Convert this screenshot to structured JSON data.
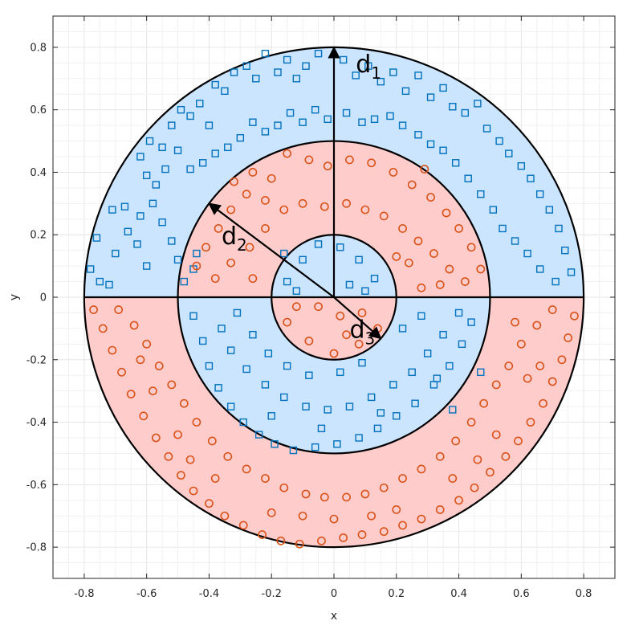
{
  "chart_data": {
    "type": "scatter",
    "title": "",
    "xlabel": "x",
    "ylabel": "y",
    "xlim": [
      -0.9,
      0.9
    ],
    "ylim": [
      -0.9,
      0.9
    ],
    "grid": true,
    "x_ticks": [
      "-0.8",
      "-0.6",
      "-0.4",
      "-0.2",
      "0",
      "0.2",
      "0.4",
      "0.6",
      "0.8"
    ],
    "y_ticks": [
      "0.8",
      "0.6",
      "0.4",
      "0.2",
      "0",
      "-0.2",
      "-0.4",
      "-0.6",
      "-0.8"
    ],
    "ring_radii": [
      0.2,
      0.5,
      0.8
    ],
    "colors": {
      "class_a_fill": "#cce5ff",
      "class_b_fill": "#ffcccc",
      "class_a_marker": "#0072bd",
      "class_b_marker": "#d95319",
      "boundary": "#000000",
      "grid": "#e6e6e6"
    },
    "markers": {
      "class_a": "square",
      "class_b": "circle"
    },
    "distances": [
      {
        "base": "d",
        "sub": "1",
        "from": [
          0,
          0
        ],
        "to": [
          0,
          0.8
        ],
        "label_at": [
          0.07,
          0.72
        ]
      },
      {
        "base": "d",
        "sub": "2",
        "from": [
          0,
          0
        ],
        "to": [
          -0.4,
          0.3
        ],
        "label_at": [
          -0.36,
          0.17
        ]
      },
      {
        "base": "d",
        "sub": "3",
        "from": [
          0,
          0
        ],
        "to": [
          0.15,
          -0.132
        ],
        "label_at": [
          0.05,
          -0.13
        ]
      }
    ],
    "series": [
      {
        "marker": "square",
        "points": [
          [
            -0.78,
            0.09
          ],
          [
            -0.75,
            0.05
          ],
          [
            -0.72,
            0.04
          ],
          [
            -0.76,
            0.19
          ],
          [
            -0.7,
            0.14
          ],
          [
            -0.66,
            0.21
          ],
          [
            -0.63,
            0.17
          ],
          [
            -0.6,
            0.1
          ],
          [
            -0.71,
            0.28
          ],
          [
            -0.67,
            0.29
          ],
          [
            -0.62,
            0.26
          ],
          [
            -0.58,
            0.3
          ],
          [
            -0.55,
            0.24
          ],
          [
            -0.52,
            0.18
          ],
          [
            -0.5,
            0.12
          ],
          [
            -0.48,
            0.05
          ],
          [
            -0.45,
            0.09
          ],
          [
            -0.44,
            0.14
          ],
          [
            -0.62,
            0.45
          ],
          [
            -0.59,
            0.5
          ],
          [
            -0.55,
            0.48
          ],
          [
            -0.52,
            0.55
          ],
          [
            -0.49,
            0.6
          ],
          [
            -0.46,
            0.58
          ],
          [
            -0.43,
            0.62
          ],
          [
            -0.4,
            0.55
          ],
          [
            -0.38,
            0.68
          ],
          [
            -0.35,
            0.66
          ],
          [
            -0.32,
            0.72
          ],
          [
            -0.28,
            0.74
          ],
          [
            -0.25,
            0.7
          ],
          [
            -0.22,
            0.78
          ],
          [
            -0.18,
            0.72
          ],
          [
            -0.15,
            0.76
          ],
          [
            -0.12,
            0.7
          ],
          [
            -0.09,
            0.74
          ],
          [
            -0.05,
            0.78
          ],
          [
            0.03,
            0.76
          ],
          [
            0.07,
            0.71
          ],
          [
            0.11,
            0.74
          ],
          [
            0.15,
            0.69
          ],
          [
            0.19,
            0.72
          ],
          [
            0.23,
            0.66
          ],
          [
            0.27,
            0.71
          ],
          [
            0.31,
            0.64
          ],
          [
            0.35,
            0.67
          ],
          [
            0.38,
            0.61
          ],
          [
            0.42,
            0.59
          ],
          [
            0.46,
            0.62
          ],
          [
            0.49,
            0.54
          ],
          [
            0.53,
            0.5
          ],
          [
            0.56,
            0.46
          ],
          [
            0.6,
            0.42
          ],
          [
            0.63,
            0.38
          ],
          [
            0.66,
            0.33
          ],
          [
            0.69,
            0.28
          ],
          [
            0.72,
            0.22
          ],
          [
            0.74,
            0.15
          ],
          [
            0.76,
            0.08
          ],
          [
            0.71,
            0.05
          ],
          [
            0.66,
            0.09
          ],
          [
            0.62,
            0.14
          ],
          [
            0.58,
            0.18
          ],
          [
            0.54,
            0.22
          ],
          [
            0.51,
            0.28
          ],
          [
            0.47,
            0.33
          ],
          [
            0.43,
            0.38
          ],
          [
            0.39,
            0.43
          ],
          [
            0.35,
            0.47
          ],
          [
            0.31,
            0.49
          ],
          [
            0.27,
            0.52
          ],
          [
            0.22,
            0.55
          ],
          [
            0.18,
            0.58
          ],
          [
            0.13,
            0.57
          ],
          [
            0.09,
            0.56
          ],
          [
            0.04,
            0.59
          ],
          [
            -0.02,
            0.57
          ],
          [
            -0.06,
            0.6
          ],
          [
            -0.1,
            0.56
          ],
          [
            -0.14,
            0.59
          ],
          [
            -0.18,
            0.55
          ],
          [
            -0.22,
            0.53
          ],
          [
            -0.26,
            0.56
          ],
          [
            -0.3,
            0.51
          ],
          [
            -0.34,
            0.48
          ],
          [
            -0.38,
            0.46
          ],
          [
            -0.42,
            0.43
          ],
          [
            -0.46,
            0.41
          ],
          [
            -0.5,
            0.47
          ],
          [
            -0.54,
            0.41
          ],
          [
            -0.57,
            0.36
          ],
          [
            -0.6,
            0.39
          ],
          [
            -0.15,
            0.05
          ],
          [
            -0.1,
            0.12
          ],
          [
            -0.05,
            0.17
          ],
          [
            0.02,
            0.16
          ],
          [
            0.08,
            0.12
          ],
          [
            0.13,
            0.06
          ],
          [
            0.1,
            0.02
          ],
          [
            -0.12,
            0.02
          ],
          [
            -0.16,
            0.14
          ],
          [
            0.05,
            0.04
          ],
          [
            -0.45,
            -0.06
          ],
          [
            -0.42,
            -0.14
          ],
          [
            -0.4,
            -0.22
          ],
          [
            -0.37,
            -0.29
          ],
          [
            -0.33,
            -0.35
          ],
          [
            -0.29,
            -0.4
          ],
          [
            -0.24,
            -0.44
          ],
          [
            -0.19,
            -0.47
          ],
          [
            -0.13,
            -0.49
          ],
          [
            -0.06,
            -0.48
          ],
          [
            0.01,
            -0.47
          ],
          [
            0.08,
            -0.45
          ],
          [
            0.14,
            -0.42
          ],
          [
            0.2,
            -0.38
          ],
          [
            0.26,
            -0.34
          ],
          [
            0.32,
            -0.28
          ],
          [
            0.37,
            -0.22
          ],
          [
            0.41,
            -0.15
          ],
          [
            0.44,
            -0.08
          ],
          [
            0.4,
            -0.05
          ],
          [
            0.35,
            -0.12
          ],
          [
            0.3,
            -0.18
          ],
          [
            0.25,
            -0.24
          ],
          [
            0.19,
            -0.28
          ],
          [
            0.12,
            -0.32
          ],
          [
            0.05,
            -0.35
          ],
          [
            -0.02,
            -0.36
          ],
          [
            -0.09,
            -0.35
          ],
          [
            -0.16,
            -0.32
          ],
          [
            -0.22,
            -0.28
          ],
          [
            -0.28,
            -0.23
          ],
          [
            -0.33,
            -0.17
          ],
          [
            -0.36,
            -0.1
          ],
          [
            -0.31,
            -0.05
          ],
          [
            -0.26,
            -0.12
          ],
          [
            -0.21,
            -0.18
          ],
          [
            -0.15,
            -0.22
          ],
          [
            -0.08,
            -0.25
          ],
          [
            0.02,
            -0.24
          ],
          [
            0.09,
            -0.21
          ],
          [
            0.22,
            -0.1
          ],
          [
            0.28,
            -0.06
          ],
          [
            0.33,
            -0.26
          ],
          [
            0.15,
            -0.37
          ],
          [
            -0.04,
            -0.42
          ],
          [
            -0.2,
            -0.38
          ],
          [
            0.47,
            -0.24
          ],
          [
            0.38,
            -0.36
          ]
        ]
      },
      {
        "marker": "circle",
        "points": [
          [
            -0.15,
            0.46
          ],
          [
            -0.08,
            0.44
          ],
          [
            -0.02,
            0.42
          ],
          [
            0.05,
            0.44
          ],
          [
            0.12,
            0.43
          ],
          [
            0.19,
            0.4
          ],
          [
            0.25,
            0.36
          ],
          [
            0.31,
            0.32
          ],
          [
            0.36,
            0.27
          ],
          [
            0.4,
            0.22
          ],
          [
            0.44,
            0.16
          ],
          [
            0.47,
            0.09
          ],
          [
            0.42,
            0.05
          ],
          [
            0.37,
            0.09
          ],
          [
            0.32,
            0.14
          ],
          [
            0.27,
            0.18
          ],
          [
            0.22,
            0.22
          ],
          [
            0.16,
            0.26
          ],
          [
            0.1,
            0.28
          ],
          [
            0.04,
            0.3
          ],
          [
            -0.03,
            0.29
          ],
          [
            -0.1,
            0.3
          ],
          [
            -0.16,
            0.28
          ],
          [
            -0.22,
            0.31
          ],
          [
            -0.28,
            0.33
          ],
          [
            -0.33,
            0.28
          ],
          [
            -0.37,
            0.22
          ],
          [
            -0.41,
            0.16
          ],
          [
            -0.44,
            0.1
          ],
          [
            -0.38,
            0.06
          ],
          [
            -0.33,
            0.11
          ],
          [
            -0.27,
            0.16
          ],
          [
            -0.22,
            0.22
          ],
          [
            -0.2,
            0.38
          ],
          [
            -0.26,
            0.4
          ],
          [
            -0.32,
            0.37
          ],
          [
            0.29,
            0.41
          ],
          [
            0.24,
            0.11
          ],
          [
            0.2,
            0.13
          ],
          [
            0.28,
            0.03
          ],
          [
            0.34,
            0.04
          ],
          [
            -0.26,
            0.06
          ],
          [
            -0.05,
            -0.03
          ],
          [
            0.02,
            -0.06
          ],
          [
            0.09,
            -0.05
          ],
          [
            0.14,
            -0.1
          ],
          [
            0.08,
            -0.15
          ],
          [
            0.0,
            -0.18
          ],
          [
            -0.08,
            -0.14
          ],
          [
            -0.15,
            -0.08
          ],
          [
            -0.12,
            -0.03
          ],
          [
            0.04,
            -0.12
          ],
          [
            -0.77,
            -0.04
          ],
          [
            -0.74,
            -0.1
          ],
          [
            -0.71,
            -0.17
          ],
          [
            -0.68,
            -0.24
          ],
          [
            -0.65,
            -0.31
          ],
          [
            -0.61,
            -0.38
          ],
          [
            -0.57,
            -0.45
          ],
          [
            -0.53,
            -0.51
          ],
          [
            -0.49,
            -0.57
          ],
          [
            -0.45,
            -0.62
          ],
          [
            -0.4,
            -0.66
          ],
          [
            -0.35,
            -0.7
          ],
          [
            -0.29,
            -0.73
          ],
          [
            -0.23,
            -0.76
          ],
          [
            -0.17,
            -0.78
          ],
          [
            -0.11,
            -0.79
          ],
          [
            -0.04,
            -0.78
          ],
          [
            0.03,
            -0.77
          ],
          [
            0.09,
            -0.76
          ],
          [
            0.16,
            -0.75
          ],
          [
            0.22,
            -0.73
          ],
          [
            0.28,
            -0.71
          ],
          [
            0.34,
            -0.68
          ],
          [
            0.4,
            -0.65
          ],
          [
            0.45,
            -0.61
          ],
          [
            0.5,
            -0.56
          ],
          [
            0.55,
            -0.51
          ],
          [
            0.59,
            -0.46
          ],
          [
            0.63,
            -0.4
          ],
          [
            0.67,
            -0.34
          ],
          [
            0.7,
            -0.27
          ],
          [
            0.73,
            -0.2
          ],
          [
            0.75,
            -0.13
          ],
          [
            0.77,
            -0.06
          ],
          [
            0.7,
            -0.04
          ],
          [
            0.65,
            -0.09
          ],
          [
            0.6,
            -0.15
          ],
          [
            0.56,
            -0.22
          ],
          [
            0.52,
            -0.28
          ],
          [
            0.48,
            -0.34
          ],
          [
            0.44,
            -0.4
          ],
          [
            0.39,
            -0.46
          ],
          [
            0.34,
            -0.51
          ],
          [
            0.28,
            -0.55
          ],
          [
            0.22,
            -0.58
          ],
          [
            0.16,
            -0.61
          ],
          [
            0.1,
            -0.63
          ],
          [
            0.04,
            -0.64
          ],
          [
            -0.03,
            -0.64
          ],
          [
            -0.09,
            -0.63
          ],
          [
            -0.16,
            -0.61
          ],
          [
            -0.22,
            -0.58
          ],
          [
            -0.28,
            -0.55
          ],
          [
            -0.34,
            -0.51
          ],
          [
            -0.39,
            -0.46
          ],
          [
            -0.44,
            -0.4
          ],
          [
            -0.48,
            -0.34
          ],
          [
            -0.52,
            -0.28
          ],
          [
            -0.56,
            -0.22
          ],
          [
            -0.6,
            -0.15
          ],
          [
            -0.64,
            -0.09
          ],
          [
            -0.69,
            -0.04
          ],
          [
            -0.58,
            -0.3
          ],
          [
            -0.5,
            -0.44
          ],
          [
            -0.38,
            -0.58
          ],
          [
            -0.2,
            -0.69
          ],
          [
            0.0,
            -0.71
          ],
          [
            0.2,
            -0.68
          ],
          [
            0.38,
            -0.58
          ],
          [
            0.52,
            -0.44
          ],
          [
            0.62,
            -0.26
          ],
          [
            0.58,
            -0.08
          ],
          [
            -0.62,
            -0.2
          ],
          [
            -0.46,
            -0.52
          ],
          [
            0.46,
            -0.52
          ],
          [
            0.66,
            -0.22
          ],
          [
            -0.1,
            -0.7
          ],
          [
            0.12,
            -0.7
          ]
        ]
      }
    ]
  }
}
